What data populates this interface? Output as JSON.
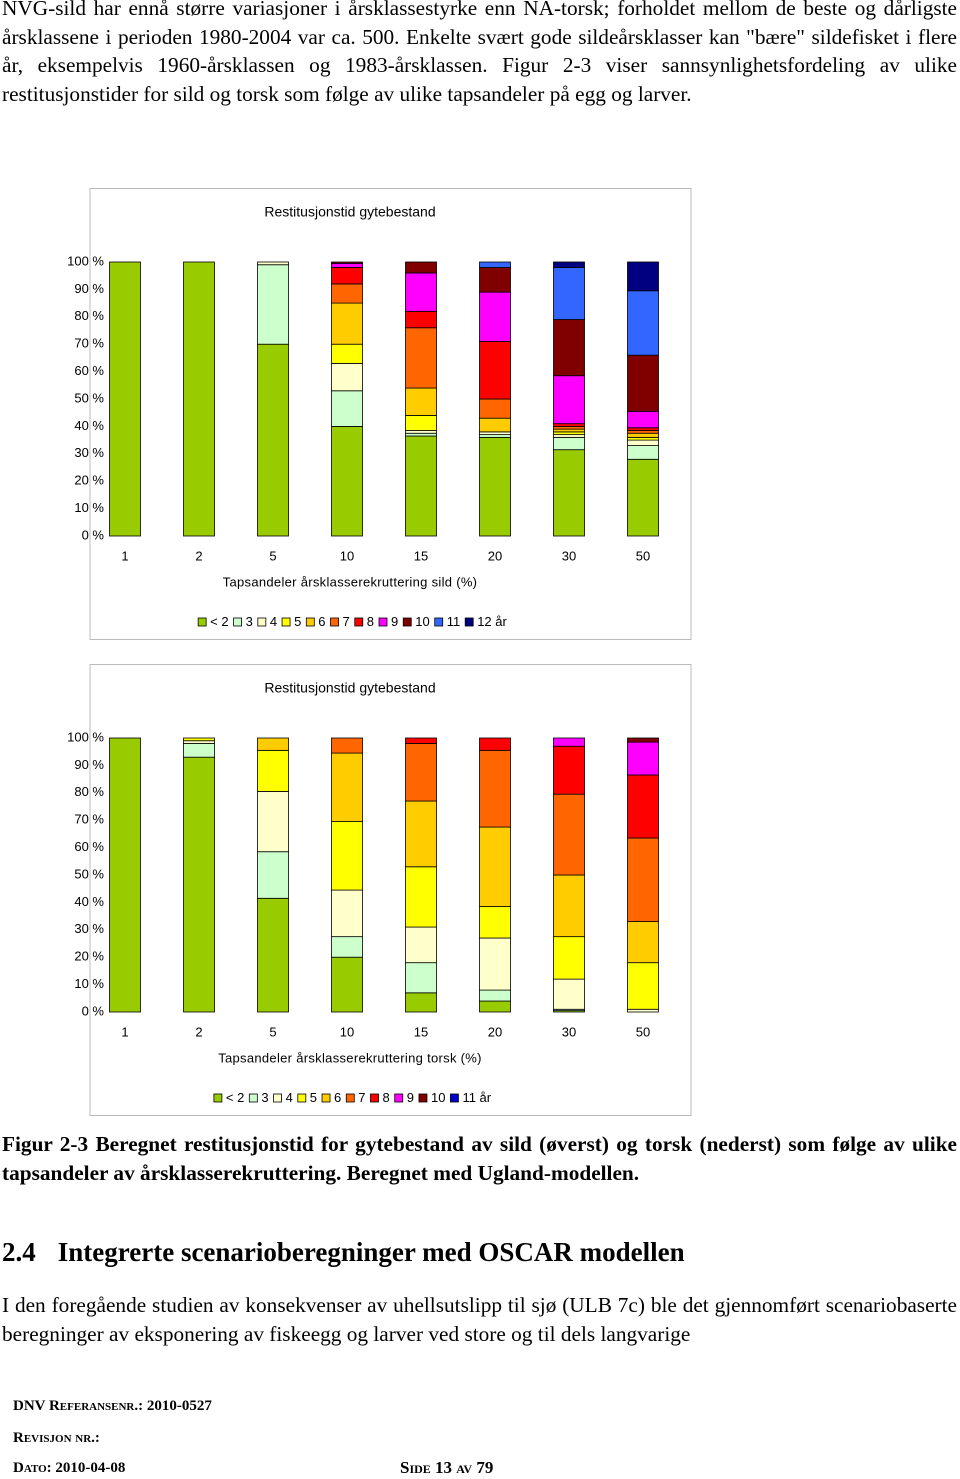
{
  "paragraph": "NVG-sild har ennå større variasjoner i årsklassestyrke enn NA-torsk; forholdet mellom de beste og dårligste årsklassene i perioden 1980-2004 var ca. 500. Enkelte svært gode sildeårsklasser kan \"bære\" sildefisket i flere år, eksempelvis 1960-årsklassen og 1983-årsklassen. Figur 2-3 viser sannsynlighetsfordeling av ulike restitusjonstider for sild og torsk som følge av ulike tapsandeler på egg og larver.",
  "chart_data": [
    {
      "type": "bar",
      "stacked": true,
      "title": "Restitusjonstid gytebestand",
      "x_label": "Tapsandeler årsklasserekruttering sild (%)",
      "categories": [
        "1",
        "2",
        "5",
        "10",
        "15",
        "20",
        "30",
        "50"
      ],
      "ylim": [
        0,
        100
      ],
      "yticks": [
        {
          "value": 0,
          "label": "0 %"
        },
        {
          "value": 10,
          "label": "10 %"
        },
        {
          "value": 20,
          "label": "20 %"
        },
        {
          "value": 30,
          "label": "30 %"
        },
        {
          "value": 40,
          "label": "40 %"
        },
        {
          "value": 50,
          "label": "50 %"
        },
        {
          "value": 60,
          "label": "60 %"
        },
        {
          "value": 70,
          "label": "70 %"
        },
        {
          "value": 80,
          "label": "80 %"
        },
        {
          "value": 90,
          "label": "90 %"
        },
        {
          "value": 100,
          "label": "100 %"
        }
      ],
      "series": [
        {
          "name": "< 2",
          "color": "#99cc00",
          "values": [
            100,
            100,
            70,
            40,
            36.5,
            36,
            31.5,
            28
          ]
        },
        {
          "name": "3",
          "color": "#ccffcc",
          "values": [
            0,
            0,
            29,
            13,
            1,
            1,
            4.5,
            5
          ]
        },
        {
          "name": "4",
          "color": "#ffffcc",
          "values": [
            0,
            0,
            1,
            10,
            1,
            1,
            1,
            2
          ]
        },
        {
          "name": "5",
          "color": "#ffff00",
          "values": [
            0,
            0,
            0,
            7,
            5.5,
            0,
            1,
            1
          ]
        },
        {
          "name": "6",
          "color": "#ffcc00",
          "values": [
            0,
            0,
            0,
            15,
            10,
            5,
            1,
            1.5
          ]
        },
        {
          "name": "7",
          "color": "#ff6600",
          "values": [
            0,
            0,
            0,
            7,
            22,
            7,
            1,
            1
          ]
        },
        {
          "name": "8",
          "color": "#ff0000",
          "values": [
            0,
            0,
            0,
            6,
            6,
            21,
            1,
            1
          ]
        },
        {
          "name": "9",
          "color": "#ff00ff",
          "values": [
            0,
            0,
            0,
            1.5,
            14,
            18,
            17.5,
            6
          ]
        },
        {
          "name": "10",
          "color": "#800000",
          "values": [
            0,
            0,
            0,
            0.5,
            4,
            9,
            20.5,
            20.5
          ]
        },
        {
          "name": "11",
          "color": "#3366ff",
          "values": [
            0,
            0,
            0,
            0,
            0,
            2,
            19,
            23.5
          ]
        },
        {
          "name": "12 år",
          "color": "#000080",
          "values": [
            0,
            0,
            0,
            0,
            0,
            0,
            2,
            10.5
          ]
        }
      ]
    },
    {
      "type": "bar",
      "stacked": true,
      "title": "Restitusjonstid gytebestand",
      "x_label": "Tapsandeler årsklasserekruttering torsk (%)",
      "categories": [
        "1",
        "2",
        "5",
        "10",
        "15",
        "20",
        "30",
        "50"
      ],
      "ylim": [
        0,
        100
      ],
      "yticks": [
        {
          "value": 0,
          "label": "0 %"
        },
        {
          "value": 10,
          "label": "10 %"
        },
        {
          "value": 20,
          "label": "20 %"
        },
        {
          "value": 30,
          "label": "30 %"
        },
        {
          "value": 40,
          "label": "40 %"
        },
        {
          "value": 50,
          "label": "50 %"
        },
        {
          "value": 60,
          "label": "60 %"
        },
        {
          "value": 70,
          "label": "70 %"
        },
        {
          "value": 80,
          "label": "80 %"
        },
        {
          "value": 90,
          "label": "90 %"
        },
        {
          "value": 100,
          "label": "100 %"
        }
      ],
      "series": [
        {
          "name": "< 2",
          "color": "#99cc00",
          "values": [
            100,
            93,
            41.5,
            20,
            7,
            4,
            0.5,
            0
          ]
        },
        {
          "name": "3",
          "color": "#ccffcc",
          "values": [
            0,
            5,
            17,
            7.5,
            11,
            4,
            0.5,
            0
          ]
        },
        {
          "name": "4",
          "color": "#ffffcc",
          "values": [
            0,
            1,
            22,
            17,
            13,
            19,
            11,
            1
          ]
        },
        {
          "name": "5",
          "color": "#ffff00",
          "values": [
            0,
            1,
            15,
            25,
            22,
            11.5,
            15.5,
            17
          ]
        },
        {
          "name": "6",
          "color": "#ffcc00",
          "values": [
            0,
            0,
            4.5,
            25,
            24,
            29,
            22.5,
            15
          ]
        },
        {
          "name": "7",
          "color": "#ff6600",
          "values": [
            0,
            0,
            0,
            5.5,
            21,
            28,
            29.5,
            30.5
          ]
        },
        {
          "name": "8",
          "color": "#ff0000",
          "values": [
            0,
            0,
            0,
            0,
            2,
            4.5,
            17.5,
            23
          ]
        },
        {
          "name": "9",
          "color": "#ff00ff",
          "values": [
            0,
            0,
            0,
            0,
            0,
            0,
            3,
            12
          ]
        },
        {
          "name": "10",
          "color": "#800000",
          "values": [
            0,
            0,
            0,
            0,
            0,
            0,
            0,
            1.5
          ]
        },
        {
          "name": "11 år",
          "color": "#0000cc",
          "values": [
            0,
            0,
            0,
            0,
            0,
            0,
            0,
            0
          ]
        }
      ]
    }
  ],
  "caption": "Figur 2-3 Beregnet restitusjonstid for gytebestand av sild (øverst) og torsk (nederst) som følge av ulike tapsandeler av årsklasserekruttering. Beregnet med Ugland-modellen.",
  "section": {
    "number": "2.4",
    "title": "Integrerte scenarioberegninger med OSCAR modellen"
  },
  "body": "I den foregående studien av konsekvenser av uhellsutslipp til sjø (ULB 7c) ble det gjennomført scenariobaserte beregninger av eksponering av fiskeegg og larver ved store og til dels langvarige",
  "footer": {
    "ref_label": "DNV Referansenr.:",
    "ref": "2010-0527",
    "revision_label": "Revisjon nr.:",
    "date_label": "Dato:",
    "date": "2010-04-08",
    "page": "Side 13 av 79"
  }
}
